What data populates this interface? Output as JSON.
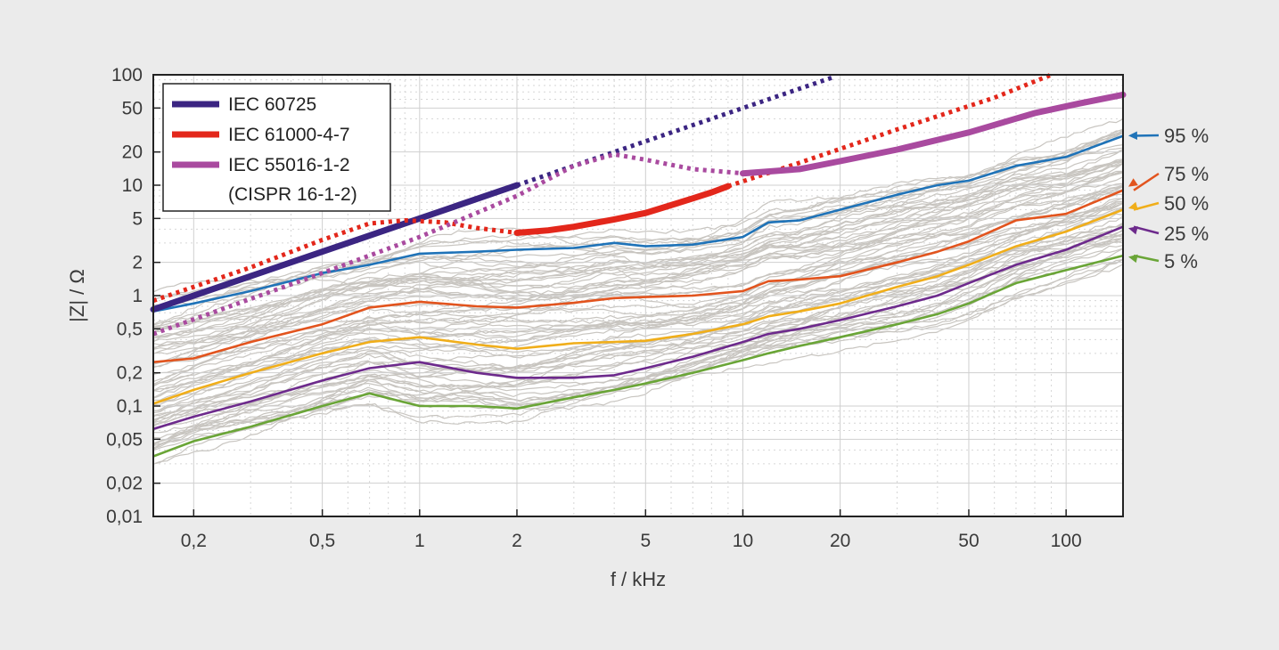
{
  "chart_data": {
    "type": "line",
    "x_scale": "log",
    "y_scale": "log",
    "xlabel": "f / kHz",
    "ylabel": "|Z| / Ω",
    "xlim": [
      0.15,
      150
    ],
    "ylim": [
      0.01,
      100
    ],
    "x_ticks": [
      {
        "v": 0.2,
        "label": "0,2"
      },
      {
        "v": 0.5,
        "label": "0,5"
      },
      {
        "v": 1,
        "label": "1"
      },
      {
        "v": 2,
        "label": "2"
      },
      {
        "v": 5,
        "label": "5"
      },
      {
        "v": 10,
        "label": "10"
      },
      {
        "v": 20,
        "label": "20"
      },
      {
        "v": 50,
        "label": "50"
      },
      {
        "v": 100,
        "label": "100"
      }
    ],
    "y_ticks": [
      {
        "v": 100,
        "label": "100"
      },
      {
        "v": 50,
        "label": "50"
      },
      {
        "v": 20,
        "label": "20"
      },
      {
        "v": 10,
        "label": "10"
      },
      {
        "v": 5,
        "label": "5"
      },
      {
        "v": 2,
        "label": "2"
      },
      {
        "v": 1,
        "label": "1"
      },
      {
        "v": 0.5,
        "label": "0,5"
      },
      {
        "v": 0.2,
        "label": "0,2"
      },
      {
        "v": 0.1,
        "label": "0,1"
      },
      {
        "v": 0.05,
        "label": "0,05"
      },
      {
        "v": 0.02,
        "label": "0,02"
      },
      {
        "v": 0.01,
        "label": "0,01"
      }
    ],
    "grid": true,
    "legend": {
      "position": "top-left",
      "entries": [
        {
          "label": "IEC 60725",
          "color": "#3b2582"
        },
        {
          "label": "IEC 61000-4-7",
          "color": "#e3271b"
        },
        {
          "label": "IEC 55016-1-2",
          "color": "#a94a9f"
        },
        {
          "label": "(CISPR 16-1-2)",
          "color": ""
        }
      ]
    },
    "reference_curves": [
      {
        "name": "IEC 60725",
        "color": "#3b2582",
        "solid": [
          [
            0.15,
            0.75
          ],
          [
            2,
            10
          ]
        ],
        "dotted": [
          [
            2,
            10
          ],
          [
            19,
            95
          ]
        ]
      },
      {
        "name": "IEC 61000-4-7",
        "color": "#e3271b",
        "solid": [
          [
            2,
            3.7
          ],
          [
            2.5,
            3.9
          ],
          [
            3,
            4.2
          ],
          [
            4,
            4.9
          ],
          [
            5,
            5.6
          ],
          [
            6,
            6.6
          ],
          [
            7,
            7.6
          ],
          [
            8,
            8.6
          ],
          [
            9,
            9.8
          ]
        ],
        "dotted": [
          [
            0.15,
            0.9
          ],
          [
            0.3,
            1.8
          ],
          [
            0.5,
            3.2
          ],
          [
            0.7,
            4.5
          ],
          [
            0.9,
            4.8
          ],
          [
            1.2,
            4.6
          ],
          [
            1.5,
            4.1
          ],
          [
            2,
            3.7
          ]
        ],
        "dotted2": [
          [
            9,
            9.8
          ],
          [
            15,
            16
          ],
          [
            30,
            32
          ],
          [
            60,
            62
          ],
          [
            90,
            100
          ]
        ]
      },
      {
        "name": "IEC 55016-1-2",
        "color": "#a94a9f",
        "solid": [
          [
            10,
            12.8
          ],
          [
            15,
            14
          ],
          [
            20,
            16.5
          ],
          [
            30,
            21
          ],
          [
            50,
            30
          ],
          [
            80,
            45
          ],
          [
            110,
            55
          ],
          [
            150,
            66
          ]
        ],
        "dotted": [
          [
            0.15,
            0.45
          ],
          [
            0.5,
            1.6
          ],
          [
            1,
            3.4
          ],
          [
            2,
            8
          ],
          [
            3,
            15
          ],
          [
            4,
            19
          ],
          [
            5,
            17
          ],
          [
            7,
            14
          ],
          [
            10,
            12.8
          ]
        ]
      }
    ],
    "series": [
      {
        "name": "95 %",
        "color": "#1f73b8",
        "x": [
          0.15,
          0.2,
          0.3,
          0.5,
          0.7,
          1,
          1.5,
          2,
          3,
          4,
          5,
          7,
          10,
          12,
          15,
          20,
          30,
          40,
          50,
          70,
          100,
          150
        ],
        "y": [
          0.72,
          0.85,
          1.1,
          1.6,
          1.9,
          2.4,
          2.5,
          2.6,
          2.7,
          3.0,
          2.8,
          2.9,
          3.4,
          4.6,
          4.8,
          6.0,
          8.2,
          10,
          11,
          15,
          18,
          28
        ]
      },
      {
        "name": "75 %",
        "color": "#e2541e",
        "x": [
          0.15,
          0.2,
          0.3,
          0.5,
          0.7,
          1,
          1.5,
          2,
          3,
          4,
          5,
          7,
          10,
          12,
          15,
          20,
          30,
          40,
          50,
          70,
          100,
          150
        ],
        "y": [
          0.25,
          0.27,
          0.38,
          0.55,
          0.78,
          0.88,
          0.8,
          0.78,
          0.86,
          0.95,
          0.97,
          1.0,
          1.1,
          1.35,
          1.4,
          1.5,
          2.0,
          2.5,
          3.1,
          4.8,
          5.5,
          9.0
        ]
      },
      {
        "name": "50 %",
        "color": "#f0ae1a",
        "x": [
          0.15,
          0.2,
          0.3,
          0.5,
          0.7,
          1,
          1.5,
          2,
          3,
          4,
          5,
          7,
          10,
          12,
          15,
          20,
          30,
          40,
          50,
          70,
          100,
          150
        ],
        "y": [
          0.105,
          0.14,
          0.2,
          0.3,
          0.38,
          0.42,
          0.36,
          0.33,
          0.37,
          0.38,
          0.39,
          0.45,
          0.55,
          0.65,
          0.72,
          0.85,
          1.2,
          1.5,
          1.9,
          2.8,
          3.8,
          6.0
        ]
      },
      {
        "name": "25 %",
        "color": "#6d2a8c",
        "x": [
          0.15,
          0.2,
          0.3,
          0.5,
          0.7,
          1,
          1.5,
          2,
          3,
          4,
          5,
          7,
          10,
          12,
          15,
          20,
          30,
          40,
          50,
          70,
          100,
          150
        ],
        "y": [
          0.062,
          0.08,
          0.11,
          0.17,
          0.22,
          0.25,
          0.2,
          0.18,
          0.18,
          0.19,
          0.22,
          0.28,
          0.38,
          0.45,
          0.5,
          0.6,
          0.8,
          1.0,
          1.3,
          1.9,
          2.6,
          4.2
        ]
      },
      {
        "name": "5 %",
        "color": "#6aa537",
        "x": [
          0.15,
          0.2,
          0.3,
          0.5,
          0.7,
          1,
          1.5,
          2,
          3,
          4,
          5,
          7,
          10,
          12,
          15,
          20,
          30,
          40,
          50,
          70,
          100,
          150
        ],
        "y": [
          0.035,
          0.048,
          0.065,
          0.1,
          0.13,
          0.1,
          0.1,
          0.095,
          0.12,
          0.14,
          0.16,
          0.2,
          0.26,
          0.3,
          0.35,
          0.42,
          0.55,
          0.68,
          0.85,
          1.3,
          1.7,
          2.3
        ]
      }
    ]
  }
}
